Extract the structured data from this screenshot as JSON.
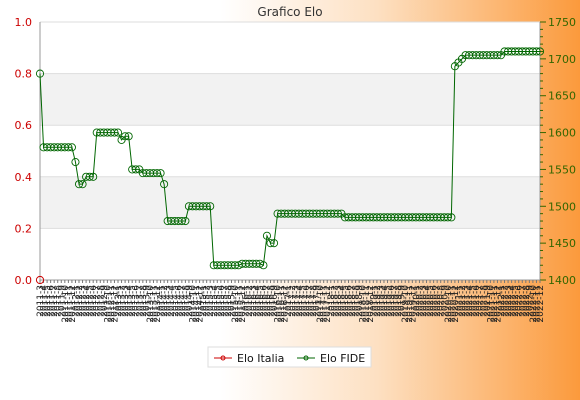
{
  "chart_data": {
    "type": "line",
    "title": "Grafico Elo",
    "legend": {
      "position": "bottom-center",
      "items": [
        "Elo Italia",
        "Elo FIDE"
      ]
    },
    "colors": {
      "italia": "#cc0000",
      "fide": "#006600",
      "grid_band": "#f2f2f2"
    },
    "y_left": {
      "min": 0.0,
      "max": 1.0,
      "ticks": [
        "0.0",
        "0.2",
        "0.4",
        "0.6",
        "0.8",
        "1.0"
      ]
    },
    "y_right": {
      "min": 1400,
      "max": 1750,
      "ticks": [
        "1400",
        "1450",
        "1500",
        "1550",
        "1600",
        "1650",
        "1700",
        "1750"
      ]
    },
    "x_tick_labels": [
      "2011-3",
      "2011-4",
      "2011-5",
      "2011-6",
      "2011-7",
      "2011-8",
      "2011-9",
      "2011-10",
      "2011-11",
      "2011-12",
      "2012-1",
      "2012-2",
      "2012-3",
      "2012-4",
      "2012-5",
      "2012-6",
      "2012-7",
      "2012-8",
      "2012-9",
      "2012-10",
      "2012-11",
      "2012-12",
      "2013-1",
      "2013-2",
      "2013-3",
      "2013-4",
      "2013-5",
      "2013-6",
      "2013-7",
      "2013-8",
      "2013-9",
      "2013-10",
      "2013-11",
      "2013-12",
      "2014-1",
      "2014-2",
      "2014-3",
      "2014-4",
      "2014-5",
      "2014-6",
      "2014-7",
      "2014-8",
      "2014-9",
      "2014-10",
      "2014-11",
      "2014-12",
      "2015-1",
      "2015-2",
      "2015-3",
      "2015-4",
      "2015-5",
      "2015-6",
      "2015-7",
      "2015-8",
      "2015-9",
      "2015-10",
      "2015-11",
      "2015-12",
      "2016-1",
      "2016-2",
      "2016-3",
      "2016-4",
      "2016-5",
      "2016-6",
      "2016-7",
      "2016-8",
      "2016-9",
      "2016-10",
      "2016-11",
      "2016-12",
      "2017-1",
      "2017-2",
      "2017-3",
      "2017-4",
      "2017-5",
      "2017-6",
      "2017-7",
      "2017-8",
      "2017-9",
      "2017-10",
      "2017-11",
      "2017-12",
      "2018-1",
      "2018-2",
      "2018-3",
      "2018-4",
      "2018-5",
      "2018-6",
      "2018-7",
      "2018-8",
      "2018-9",
      "2018-10",
      "2018-11",
      "2018-12",
      "2019-1",
      "2019-2",
      "2019-3",
      "2019-4",
      "2019-5",
      "2019-6",
      "2019-7",
      "2019-8",
      "2019-9",
      "2019-10",
      "2019-11",
      "2019-12",
      "2020-1",
      "2020-2",
      "2020-3",
      "2020-4",
      "2020-5",
      "2020-6",
      "2020-7",
      "2020-8",
      "2020-9",
      "2020-10",
      "2020-11",
      "2020-12",
      "2021-1",
      "2021-2",
      "2021-3",
      "2021-4",
      "2021-5",
      "2021-6",
      "2021-7",
      "2021-8",
      "2021-9",
      "2021-10",
      "2021-11",
      "2021-12",
      "2022-1",
      "2022-2",
      "2022-3",
      "2022-4",
      "2022-5",
      "2022-6",
      "2022-7",
      "2022-8",
      "2022-9",
      "2022-10",
      "2022-11",
      "2022-12"
    ],
    "series": [
      {
        "name": "Elo Italia",
        "axis": "left",
        "values": [
          0.0
        ]
      },
      {
        "name": "Elo FIDE",
        "axis": "right",
        "values": [
          1680,
          1580,
          1580,
          1580,
          1580,
          1580,
          1580,
          1580,
          1580,
          1580,
          1560,
          1530,
          1530,
          1540,
          1540,
          1540,
          1600,
          1600,
          1600,
          1600,
          1600,
          1600,
          1600,
          1590,
          1595,
          1595,
          1550,
          1550,
          1550,
          1545,
          1545,
          1545,
          1545,
          1545,
          1545,
          1530,
          1480,
          1480,
          1480,
          1480,
          1480,
          1480,
          1500,
          1500,
          1500,
          1500,
          1500,
          1500,
          1500,
          1420,
          1420,
          1420,
          1420,
          1420,
          1420,
          1420,
          1420,
          1422,
          1422,
          1422,
          1422,
          1422,
          1422,
          1420,
          1460,
          1450,
          1450,
          1490,
          1490,
          1490,
          1490,
          1490,
          1490,
          1490,
          1490,
          1490,
          1490,
          1490,
          1490,
          1490,
          1490,
          1490,
          1490,
          1490,
          1490,
          1490,
          1485,
          1485,
          1485,
          1485,
          1485,
          1485,
          1485,
          1485,
          1485,
          1485,
          1485,
          1485,
          1485,
          1485,
          1485,
          1485,
          1485,
          1485,
          1485,
          1485,
          1485,
          1485,
          1485,
          1485,
          1485,
          1485,
          1485,
          1485,
          1485,
          1485,
          1485,
          1690,
          1695,
          1700,
          1705,
          1705,
          1705,
          1705,
          1705,
          1705,
          1705,
          1705,
          1705,
          1705,
          1705,
          1710,
          1710,
          1710,
          1710,
          1710,
          1710,
          1710,
          1710,
          1710,
          1710,
          1710
        ]
      }
    ]
  }
}
